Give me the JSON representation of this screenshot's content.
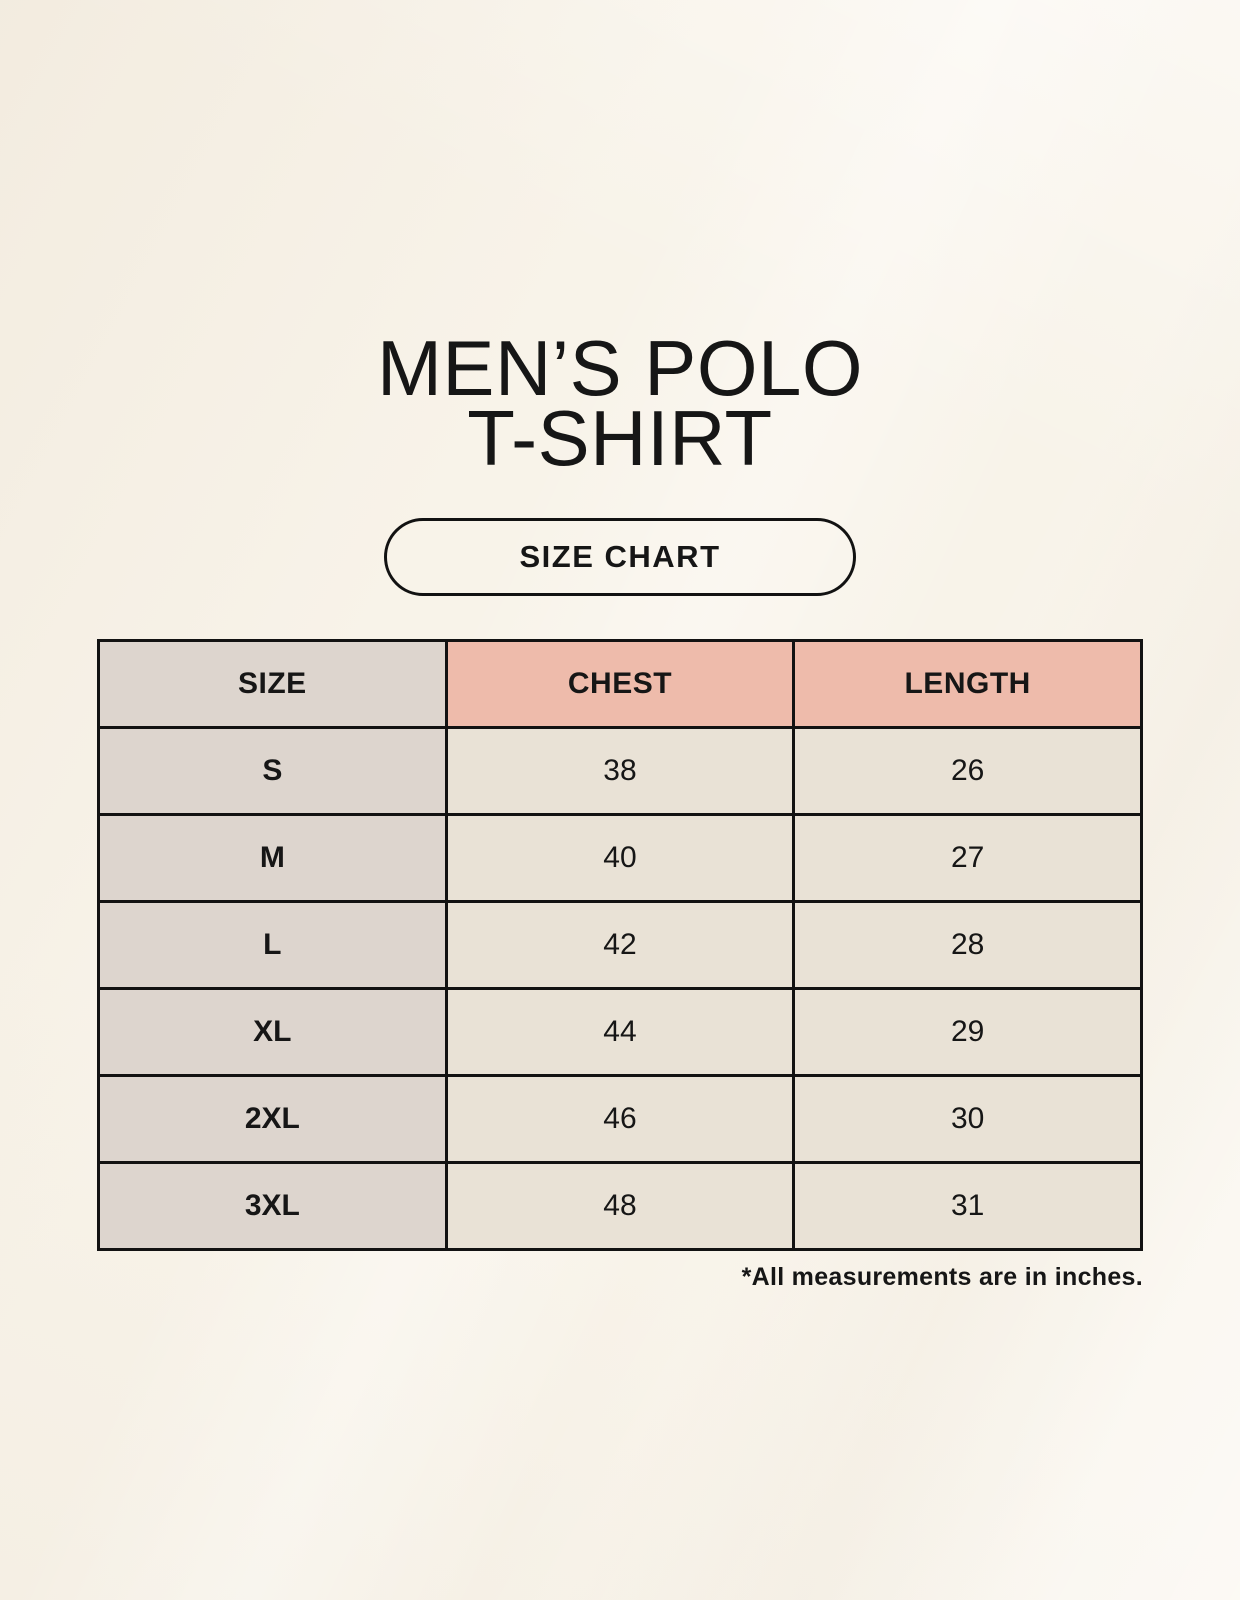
{
  "title": {
    "line1": "MEN’S POLO",
    "line2": "T-SHIRT"
  },
  "badge": {
    "label": "SIZE CHART"
  },
  "footnote": "*All measurements are in inches.",
  "colors": {
    "background": "#f8f3e9",
    "size_column_bg": "#ddd5ce",
    "header_accent_bg": "#eebbab",
    "cell_bg": "#e9e2d6",
    "border": "#121212",
    "text": "#161616"
  },
  "chart_data": {
    "type": "table",
    "title": "MEN’S POLO T-SHIRT SIZE CHART",
    "columns": [
      "SIZE",
      "CHEST",
      "LENGTH"
    ],
    "rows": [
      [
        "S",
        38,
        26
      ],
      [
        "M",
        40,
        27
      ],
      [
        "L",
        42,
        28
      ],
      [
        "XL",
        44,
        29
      ],
      [
        "2XL",
        46,
        30
      ],
      [
        "3XL",
        48,
        31
      ]
    ],
    "unit_note": "*All measurements are in inches."
  }
}
